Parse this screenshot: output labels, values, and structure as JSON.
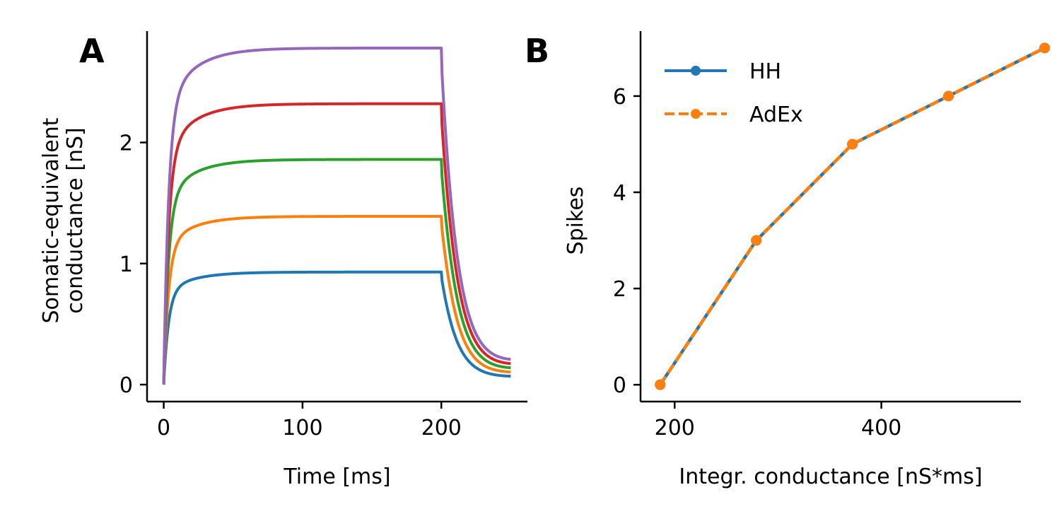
{
  "panels": [
    {
      "letter": "A",
      "chart_data": {
        "type": "line",
        "xlabel": "Time [ms]",
        "ylabel_lines": [
          "Somatic-equivalent",
          "conductance [nS]"
        ],
        "xlim": [
          -12,
          262
        ],
        "ylim": [
          -0.14,
          2.92
        ],
        "xticks": [
          0,
          100,
          200
        ],
        "yticks": [
          0,
          1,
          2
        ],
        "grid": false,
        "stimulus": {
          "on": 0,
          "off": 200,
          "end": 250,
          "tau_rise": 3.5,
          "tau_slow": 20,
          "tau_decay": 11
        },
        "series": [
          {
            "color": "#1f77b4",
            "plateau": 0.93,
            "final": 0.06
          },
          {
            "color": "#ff7f0e",
            "plateau": 1.39,
            "final": 0.09
          },
          {
            "color": "#2ca02c",
            "plateau": 1.86,
            "final": 0.12
          },
          {
            "color": "#d62728",
            "plateau": 2.32,
            "final": 0.15
          },
          {
            "color": "#9467bd",
            "plateau": 2.78,
            "final": 0.18
          }
        ]
      }
    },
    {
      "letter": "B",
      "chart_data": {
        "type": "line",
        "xlabel": "Integr. conductance [nS*ms]",
        "ylabel": "Spikes",
        "xlim": [
          167,
          535
        ],
        "ylim": [
          -0.35,
          7.35
        ],
        "xticks": [
          200,
          400
        ],
        "yticks": [
          0,
          2,
          4,
          6
        ],
        "grid": false,
        "legend_position": "upper-left",
        "series": [
          {
            "name": "HH",
            "color": "#1f77b4",
            "style": "solid",
            "x": [
              186,
              279,
              372,
              465,
              558
            ],
            "y": [
              0,
              3,
              5,
              6,
              7
            ]
          },
          {
            "name": "AdEx",
            "color": "#ff7f0e",
            "style": "dashed",
            "x": [
              186,
              279,
              372,
              465,
              558
            ],
            "y": [
              0,
              3,
              5,
              6,
              7
            ]
          }
        ]
      }
    }
  ]
}
